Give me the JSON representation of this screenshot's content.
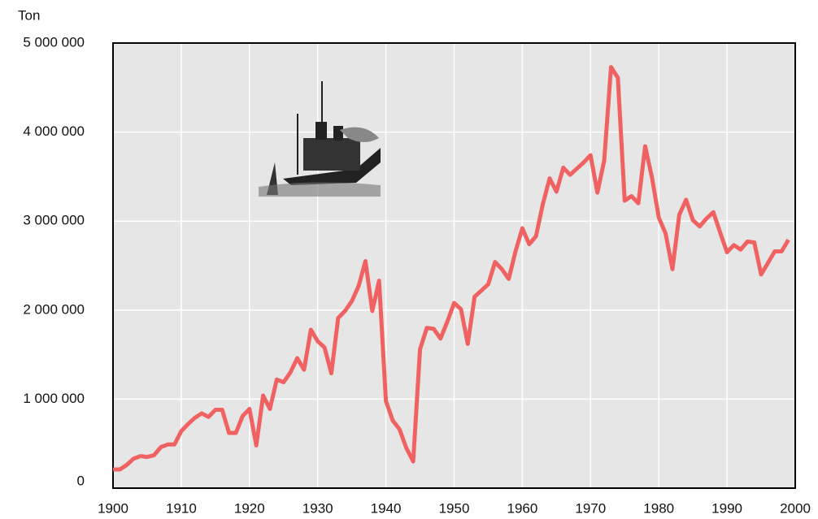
{
  "chart_data": {
    "type": "line",
    "y_label": "Ton",
    "x": [
      1900,
      1901,
      1902,
      1903,
      1904,
      1905,
      1906,
      1907,
      1908,
      1909,
      1910,
      1911,
      1912,
      1913,
      1914,
      1915,
      1916,
      1917,
      1918,
      1919,
      1920,
      1921,
      1922,
      1923,
      1924,
      1925,
      1926,
      1927,
      1928,
      1929,
      1930,
      1931,
      1932,
      1933,
      1934,
      1935,
      1936,
      1937,
      1938,
      1939,
      1940,
      1941,
      1942,
      1943,
      1944,
      1945,
      1946,
      1947,
      1948,
      1949,
      1950,
      1951,
      1952,
      1953,
      1954,
      1955,
      1956,
      1957,
      1958,
      1959,
      1960,
      1961,
      1962,
      1963,
      1964,
      1965,
      1966,
      1967,
      1968,
      1969,
      1970,
      1971,
      1972,
      1973,
      1974,
      1975,
      1976,
      1977,
      1978,
      1979,
      1980,
      1981,
      1982,
      1983,
      1984,
      1985,
      1986,
      1987,
      1988,
      1989,
      1990,
      1991,
      1992,
      1993,
      1994,
      1995,
      1996,
      1997,
      1998,
      1999
    ],
    "series": [
      {
        "name": "Ton",
        "color": "#f06262",
        "values": [
          210000,
          210000,
          260000,
          330000,
          360000,
          350000,
          370000,
          460000,
          490000,
          490000,
          640000,
          720000,
          790000,
          840000,
          800000,
          880000,
          880000,
          620000,
          620000,
          810000,
          890000,
          480000,
          1040000,
          890000,
          1220000,
          1190000,
          1300000,
          1460000,
          1330000,
          1780000,
          1650000,
          1580000,
          1290000,
          1910000,
          1990000,
          2100000,
          2270000,
          2550000,
          1990000,
          2330000,
          980000,
          760000,
          660000,
          450000,
          300000,
          1560000,
          1800000,
          1790000,
          1680000,
          1870000,
          2080000,
          2010000,
          1620000,
          2150000,
          2220000,
          2290000,
          2540000,
          2460000,
          2350000,
          2660000,
          2920000,
          2740000,
          2830000,
          3190000,
          3480000,
          3330000,
          3600000,
          3520000,
          3590000,
          3660000,
          3740000,
          3320000,
          3680000,
          4730000,
          4610000,
          3230000,
          3280000,
          3200000,
          3840000,
          3490000,
          3040000,
          2860000,
          2460000,
          3070000,
          3240000,
          3010000,
          2940000,
          3030000,
          3100000,
          2870000,
          2650000,
          2730000,
          2680000,
          2770000,
          2760000,
          2400000,
          2530000,
          2660000,
          2660000,
          2790000
        ]
      }
    ],
    "xlim": [
      1900,
      2000
    ],
    "xticks": [
      1900,
      1910,
      1920,
      1930,
      1940,
      1950,
      1960,
      1970,
      1980,
      1990,
      2000
    ],
    "ylim": [
      0,
      5000000
    ],
    "yticks": [
      0,
      {
        "value": 1000000,
        "label": "1 000 000"
      },
      {
        "value": 2000000,
        "label": "2 000 000"
      },
      {
        "value": 3000000,
        "label": "3 000 000"
      },
      {
        "value": 4000000,
        "label": "4 000 000"
      },
      {
        "value": 5000000,
        "label": "5 000 000"
      }
    ],
    "grid": true
  }
}
